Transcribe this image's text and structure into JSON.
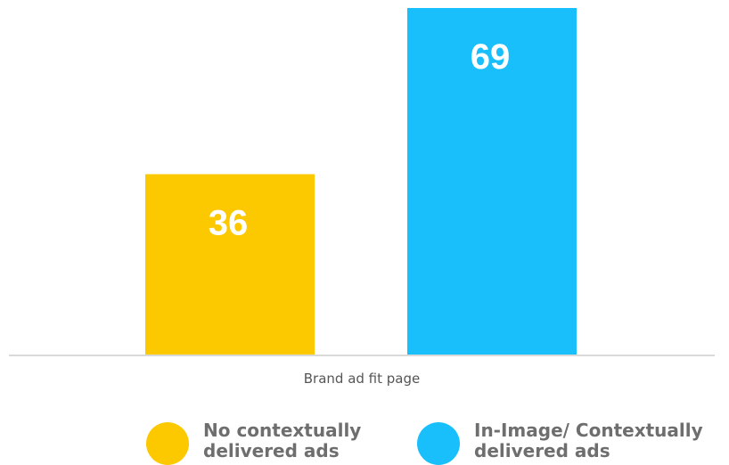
{
  "chart_data": {
    "type": "bar",
    "categories": [
      "Brand ad fit page"
    ],
    "series": [
      {
        "name": "No contextually\ndelivered ads",
        "values": [
          36
        ],
        "color": "#fcc800"
      },
      {
        "name": "In-Image/ Contextually\ndelivered ads",
        "values": [
          69
        ],
        "color": "#18bffb"
      }
    ],
    "ylim": [
      0,
      69
    ],
    "grid": false,
    "legend": "bottom",
    "baseline_color": "#d9d9d9"
  }
}
